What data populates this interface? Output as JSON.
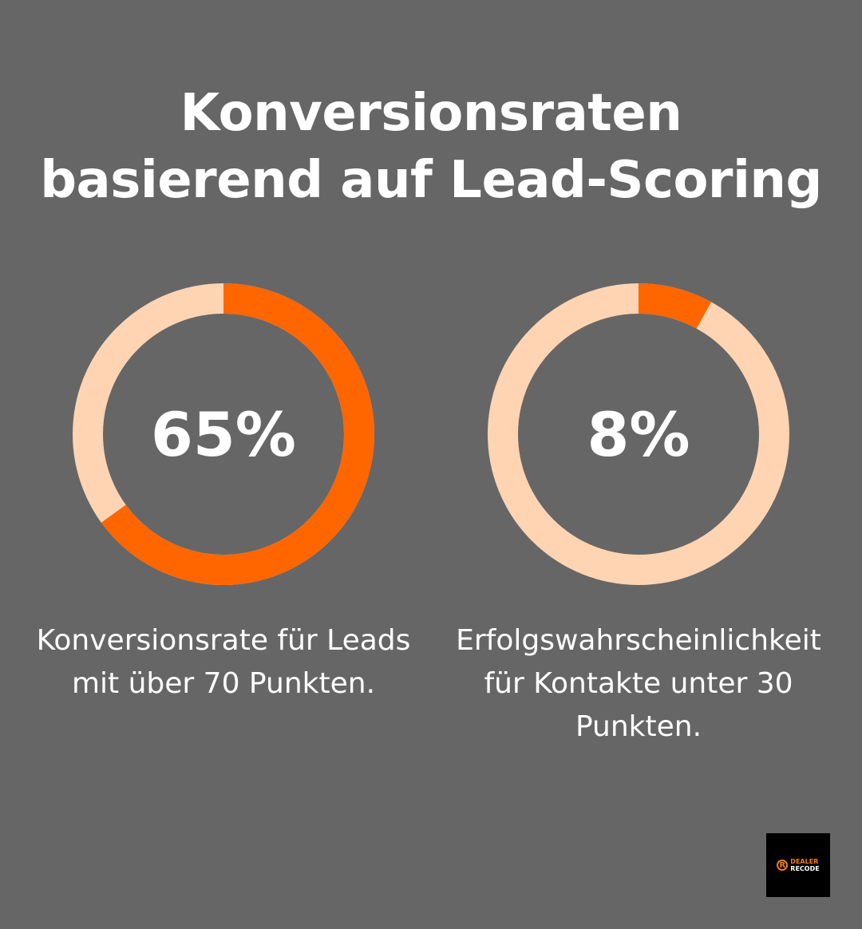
{
  "title_line1": "Konversionsraten",
  "title_line2": "basierend auf Lead-Scoring",
  "chart_data": [
    {
      "type": "pie",
      "variant": "donut",
      "value": 65,
      "label": "65%",
      "caption": "Konversionsrate für Leads mit über 70 Punkten.",
      "colors": {
        "value": "#FF6600",
        "remainder": "#FFD4B3"
      }
    },
    {
      "type": "pie",
      "variant": "donut",
      "value": 8,
      "label": "8%",
      "caption": "Erfolgswahrscheinlichkeit für Kontakte unter 30 Punkten.",
      "colors": {
        "value": "#FF6600",
        "remainder": "#FFD4B3"
      }
    }
  ],
  "logo": {
    "line1": "DEALER",
    "line2": "RECODE",
    "mark": "R"
  }
}
